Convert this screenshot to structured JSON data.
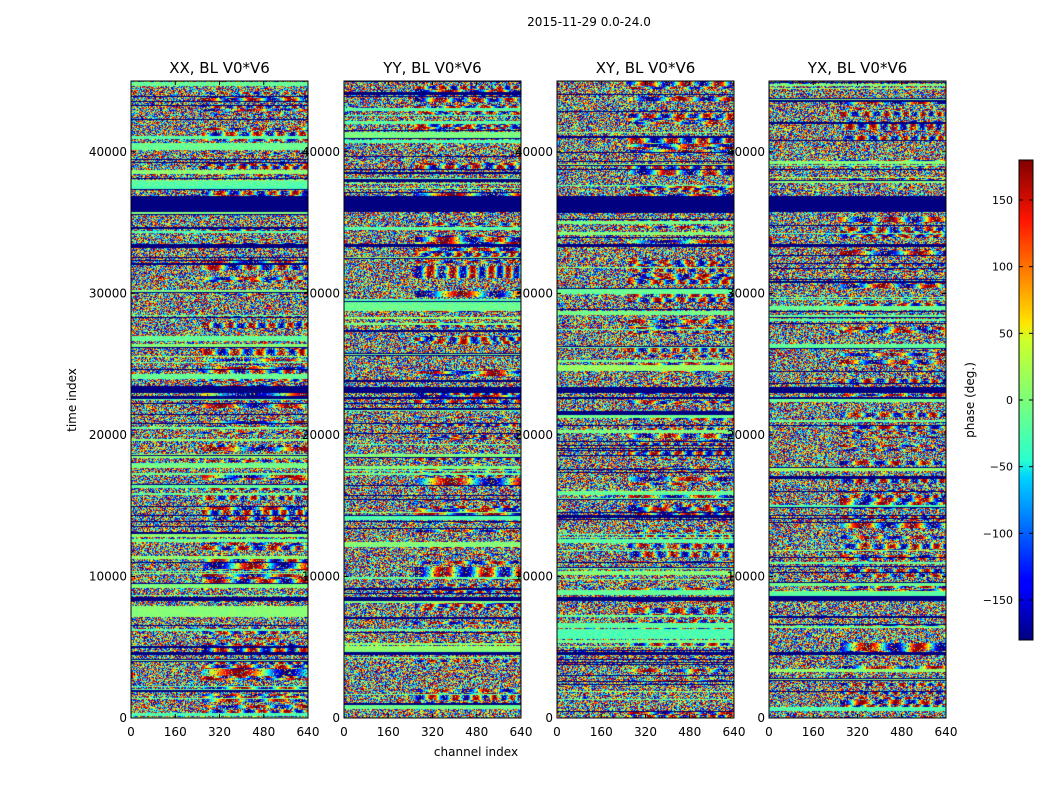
{
  "figure": {
    "suptitle": "2015-11-29 0.0-24.0"
  },
  "chart_data": {
    "type": "heatmap",
    "panels": [
      {
        "title": "XX, BL V0*V6"
      },
      {
        "title": "YY, BL V0*V6"
      },
      {
        "title": "XY, BL V0*V6"
      },
      {
        "title": "YX, BL V0*V6"
      }
    ],
    "xlabel": "channel index",
    "ylabel": "time index",
    "xlim": [
      0,
      640
    ],
    "ylim": [
      0,
      45000
    ],
    "xticks": [
      0,
      160,
      320,
      480,
      640
    ],
    "yticks": [
      0,
      10000,
      20000,
      30000,
      40000
    ],
    "colorbar": {
      "label": "phase (deg.)",
      "range": [
        -180,
        180
      ],
      "ticks": [
        150,
        100,
        50,
        0,
        -50,
        -100,
        -150
      ],
      "tick_labels": [
        "150",
        "100",
        "50",
        "0",
        "−50",
        "−100",
        "−150"
      ],
      "colormap": "jet"
    },
    "flagged_time_bands": [
      [
        35800,
        36900
      ],
      [
        33300,
        33500
      ],
      [
        23000,
        23400
      ],
      [
        22600,
        22700
      ],
      [
        14300,
        14400
      ],
      [
        8300,
        8600
      ],
      [
        4500,
        4700
      ]
    ]
  }
}
